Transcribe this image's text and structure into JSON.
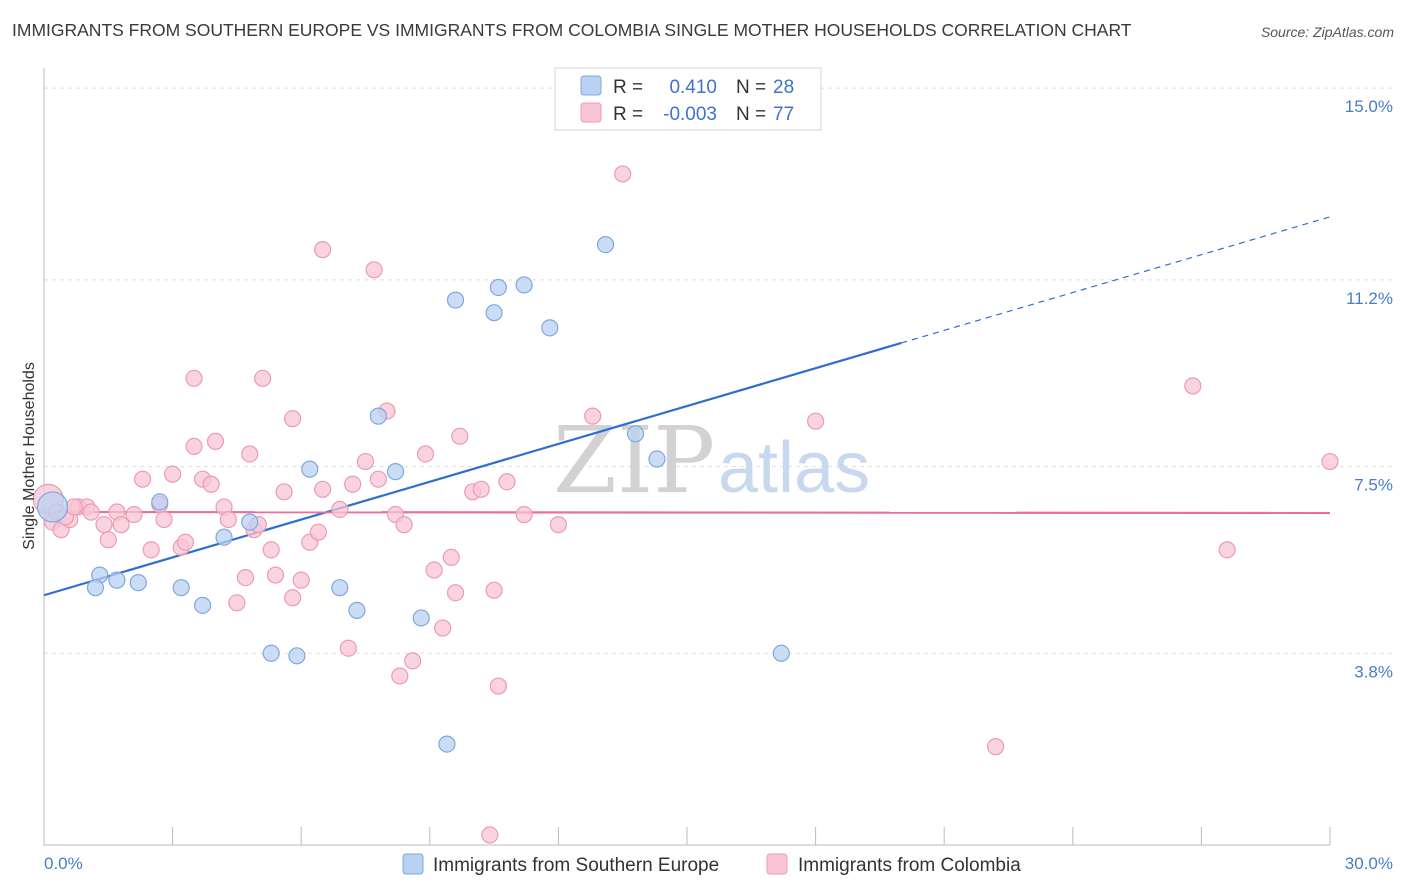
{
  "title": "IMMIGRANTS FROM SOUTHERN EUROPE VS IMMIGRANTS FROM COLOMBIA SINGLE MOTHER HOUSEHOLDS CORRELATION CHART",
  "source": "Source: ZipAtlas.com",
  "watermark": {
    "part1": "ZIP",
    "part2": "atlas"
  },
  "colors": {
    "blue_fill": "#b9d2f2",
    "blue_stroke": "#7ea8e0",
    "blue_line": "#2f6fd0",
    "pink_fill": "#f7c5d4",
    "pink_stroke": "#ee9ab4",
    "pink_line": "#e8709a",
    "tick_text": "#4a7cc9",
    "grid": "#dddddd"
  },
  "legend_top": [
    {
      "r_label": "R =",
      "r_value": "0.410",
      "n_label": "N =",
      "n_value": "28"
    },
    {
      "r_label": "R =",
      "r_value": "-0.003",
      "n_label": "N =",
      "n_value": "77"
    }
  ],
  "chart_data": {
    "type": "scatter",
    "ylabel": "Single Mother Households",
    "xlim": [
      0,
      30
    ],
    "ylim": [
      0,
      15.4
    ],
    "x_tick_labels": [
      "0.0%",
      "30.0%"
    ],
    "y_ticks": [
      3.8,
      7.5,
      11.2,
      15.0
    ],
    "y_tick_labels": [
      "3.8%",
      "7.5%",
      "11.2%",
      "15.0%"
    ],
    "legend_position": "top-center",
    "series": [
      {
        "name": "Immigrants from Southern Europe",
        "color": "blue",
        "trend": {
          "x0": 0,
          "y0": 4.95,
          "x1": 30,
          "y1": 12.45,
          "solid_until": 20
        },
        "points": [
          [
            0.2,
            6.7
          ],
          [
            1.3,
            5.35
          ],
          [
            1.2,
            5.1
          ],
          [
            1.7,
            5.25
          ],
          [
            2.2,
            5.2
          ],
          [
            2.7,
            6.8
          ],
          [
            3.2,
            5.1
          ],
          [
            3.7,
            4.75
          ],
          [
            4.2,
            6.1
          ],
          [
            4.8,
            6.4
          ],
          [
            5.3,
            3.8
          ],
          [
            5.9,
            3.75
          ],
          [
            6.2,
            7.45
          ],
          [
            6.9,
            5.1
          ],
          [
            7.3,
            4.65
          ],
          [
            7.8,
            8.5
          ],
          [
            8.2,
            7.4
          ],
          [
            8.8,
            4.5
          ],
          [
            9.4,
            2.0
          ],
          [
            9.6,
            10.8
          ],
          [
            10.5,
            10.55
          ],
          [
            10.6,
            11.05
          ],
          [
            11.2,
            11.1
          ],
          [
            11.8,
            10.25
          ],
          [
            13.1,
            11.9
          ],
          [
            13.8,
            8.15
          ],
          [
            14.3,
            7.65
          ],
          [
            17.2,
            3.8
          ]
        ]
      },
      {
        "name": "Immigrants from Colombia",
        "color": "pink",
        "trend": {
          "x0": 0,
          "y0": 6.6,
          "x1": 30,
          "y1": 6.58,
          "solid_until": 30
        },
        "points": [
          [
            0.1,
            6.85
          ],
          [
            0.2,
            6.4
          ],
          [
            0.4,
            6.25
          ],
          [
            0.6,
            6.45
          ],
          [
            0.8,
            6.7
          ],
          [
            1.0,
            6.7
          ],
          [
            1.1,
            6.6
          ],
          [
            1.4,
            6.35
          ],
          [
            1.5,
            6.05
          ],
          [
            1.7,
            6.6
          ],
          [
            1.8,
            6.35
          ],
          [
            2.1,
            6.55
          ],
          [
            2.3,
            7.25
          ],
          [
            2.5,
            5.85
          ],
          [
            2.7,
            6.75
          ],
          [
            2.8,
            6.45
          ],
          [
            3.0,
            7.35
          ],
          [
            3.2,
            5.9
          ],
          [
            3.3,
            6.0
          ],
          [
            3.5,
            7.9
          ],
          [
            3.5,
            9.25
          ],
          [
            3.7,
            7.25
          ],
          [
            3.9,
            7.15
          ],
          [
            4.0,
            8.0
          ],
          [
            4.2,
            6.7
          ],
          [
            4.3,
            6.45
          ],
          [
            4.5,
            4.8
          ],
          [
            4.7,
            5.3
          ],
          [
            4.8,
            7.75
          ],
          [
            4.9,
            6.25
          ],
          [
            5.0,
            6.35
          ],
          [
            5.1,
            9.25
          ],
          [
            5.3,
            5.85
          ],
          [
            5.4,
            5.35
          ],
          [
            5.6,
            7.0
          ],
          [
            5.8,
            4.9
          ],
          [
            5.8,
            8.45
          ],
          [
            6.0,
            5.25
          ],
          [
            6.2,
            6.0
          ],
          [
            6.4,
            6.2
          ],
          [
            6.5,
            11.8
          ],
          [
            6.5,
            7.05
          ],
          [
            6.9,
            6.65
          ],
          [
            7.1,
            3.9
          ],
          [
            7.2,
            7.15
          ],
          [
            7.5,
            7.6
          ],
          [
            7.7,
            11.4
          ],
          [
            7.8,
            7.25
          ],
          [
            8.0,
            8.6
          ],
          [
            8.2,
            6.55
          ],
          [
            8.3,
            3.35
          ],
          [
            8.4,
            6.35
          ],
          [
            8.6,
            3.65
          ],
          [
            8.9,
            7.75
          ],
          [
            9.1,
            5.45
          ],
          [
            9.3,
            4.3
          ],
          [
            9.5,
            5.7
          ],
          [
            9.6,
            5.0
          ],
          [
            9.7,
            8.1
          ],
          [
            10.0,
            7.0
          ],
          [
            10.2,
            7.05
          ],
          [
            10.5,
            5.05
          ],
          [
            10.6,
            3.15
          ],
          [
            10.8,
            7.2
          ],
          [
            11.2,
            6.55
          ],
          [
            10.4,
            0.2
          ],
          [
            12.0,
            6.35
          ],
          [
            12.8,
            8.5
          ],
          [
            13.5,
            13.3
          ],
          [
            18.0,
            8.4
          ],
          [
            22.2,
            1.95
          ],
          [
            26.8,
            9.1
          ],
          [
            27.6,
            5.85
          ],
          [
            30.0,
            7.6
          ],
          [
            0.3,
            6.6
          ],
          [
            0.5,
            6.5
          ],
          [
            0.7,
            6.7
          ]
        ]
      }
    ]
  }
}
